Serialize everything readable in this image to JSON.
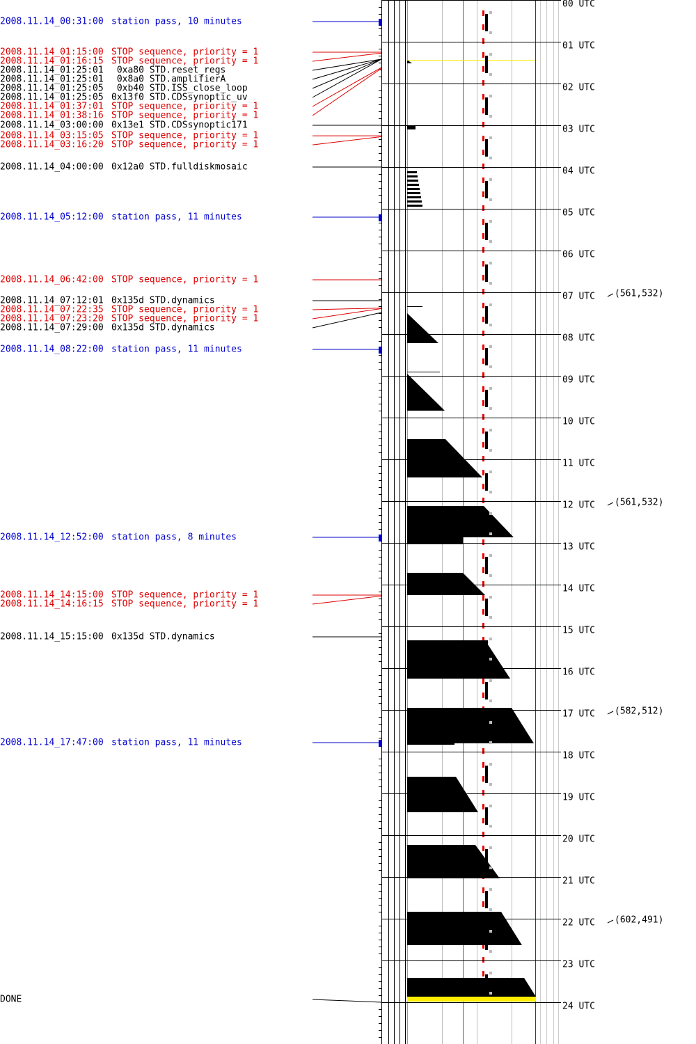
{
  "events": [
    {
      "time": "2008.11.14_00:31:00",
      "text": "station pass, 10 minutes",
      "color": "#0000cc"
    },
    {
      "time": "2008.11.14_01:15:00",
      "text": "STOP sequence, priority = 1",
      "color": "#dd0000"
    },
    {
      "time": "2008.11.14_01:16:15",
      "text": "STOP sequence, priority = 1",
      "color": "#dd0000"
    },
    {
      "time": "2008.11.14_01:25:01",
      "text": " 0xa80 STD.reset_regs",
      "color": "#000000"
    },
    {
      "time": "2008.11.14_01:25:01",
      "text": " 0x8a0 STD.amplifierA",
      "color": "#000000"
    },
    {
      "time": "2008.11.14_01:25:05",
      "text": " 0xb40 STD.ISS_close_loop",
      "color": "#000000"
    },
    {
      "time": "2008.11.14_01:25:05",
      "text": "0x13f0 STD.CDSsynoptic_uv",
      "color": "#000000"
    },
    {
      "time": "2008.11.14_01:37:01",
      "text": "STOP sequence, priority = 1",
      "color": "#dd0000"
    },
    {
      "time": "2008.11.14_01:38:16",
      "text": "STOP sequence, priority = 1",
      "color": "#dd0000"
    },
    {
      "time": "2008.11.14_03:00:00",
      "text": "0x13e1 STD.CDSsynoptic171",
      "color": "#000000"
    },
    {
      "time": "2008.11.14_03:15:05",
      "text": "STOP sequence, priority = 1",
      "color": "#dd0000"
    },
    {
      "time": "2008.11.14_03:16:20",
      "text": "STOP sequence, priority = 1",
      "color": "#dd0000"
    },
    {
      "time": "2008.11.14_04:00:00",
      "text": "0x12a0 STD.fulldiskmosaic",
      "color": "#000000"
    },
    {
      "time": "2008.11.14_05:12:00",
      "text": "station pass, 11 minutes",
      "color": "#0000cc"
    },
    {
      "time": "2008.11.14_06:42:00",
      "text": "STOP sequence, priority = 1",
      "color": "#dd0000"
    },
    {
      "time": "2008.11.14_07:12:01",
      "text": "0x135d STD.dynamics",
      "color": "#000000"
    },
    {
      "time": "2008.11.14_07:22:35",
      "text": "STOP sequence, priority = 1",
      "color": "#dd0000"
    },
    {
      "time": "2008.11.14_07:23:20",
      "text": "STOP sequence, priority = 1",
      "color": "#dd0000"
    },
    {
      "time": "2008.11.14_07:29:00",
      "text": "0x135d STD.dynamics",
      "color": "#000000"
    },
    {
      "time": "2008.11.14_08:22:00",
      "text": "station pass, 11 minutes",
      "color": "#0000cc"
    },
    {
      "time": "2008.11.14_12:52:00",
      "text": "station pass, 8 minutes",
      "color": "#0000cc"
    },
    {
      "time": "2008.11.14_14:15:00",
      "text": "STOP sequence, priority = 1",
      "color": "#dd0000"
    },
    {
      "time": "2008.11.14_14:16:15",
      "text": "STOP sequence, priority = 1",
      "color": "#dd0000"
    },
    {
      "time": "2008.11.14_15:15:00",
      "text": "0x135d STD.dynamics",
      "color": "#000000"
    },
    {
      "time": "2008.11.14_17:47:00",
      "text": "station pass, 11 minutes",
      "color": "#0000cc"
    }
  ],
  "done": "DONE",
  "hours": [
    {
      "label": "00 UTC"
    },
    {
      "label": "01 UTC"
    },
    {
      "label": "02 UTC"
    },
    {
      "label": "03 UTC"
    },
    {
      "label": "04 UTC"
    },
    {
      "label": "05 UTC"
    },
    {
      "label": "06 UTC"
    },
    {
      "label": "07 UTC",
      "note": "(561,532)"
    },
    {
      "label": "08 UTC"
    },
    {
      "label": "09 UTC"
    },
    {
      "label": "10 UTC"
    },
    {
      "label": "11 UTC"
    },
    {
      "label": "12 UTC",
      "note": "(561,532)"
    },
    {
      "label": "13 UTC"
    },
    {
      "label": "14 UTC"
    },
    {
      "label": "15 UTC"
    },
    {
      "label": "16 UTC"
    },
    {
      "label": "17 UTC",
      "note": "(582,512)"
    },
    {
      "label": "18 UTC"
    },
    {
      "label": "19 UTC"
    },
    {
      "label": "20 UTC"
    },
    {
      "label": "21 UTC"
    },
    {
      "label": "22 UTC",
      "note": "(602,491)"
    },
    {
      "label": "23 UTC"
    },
    {
      "label": "24 UTC"
    }
  ]
}
